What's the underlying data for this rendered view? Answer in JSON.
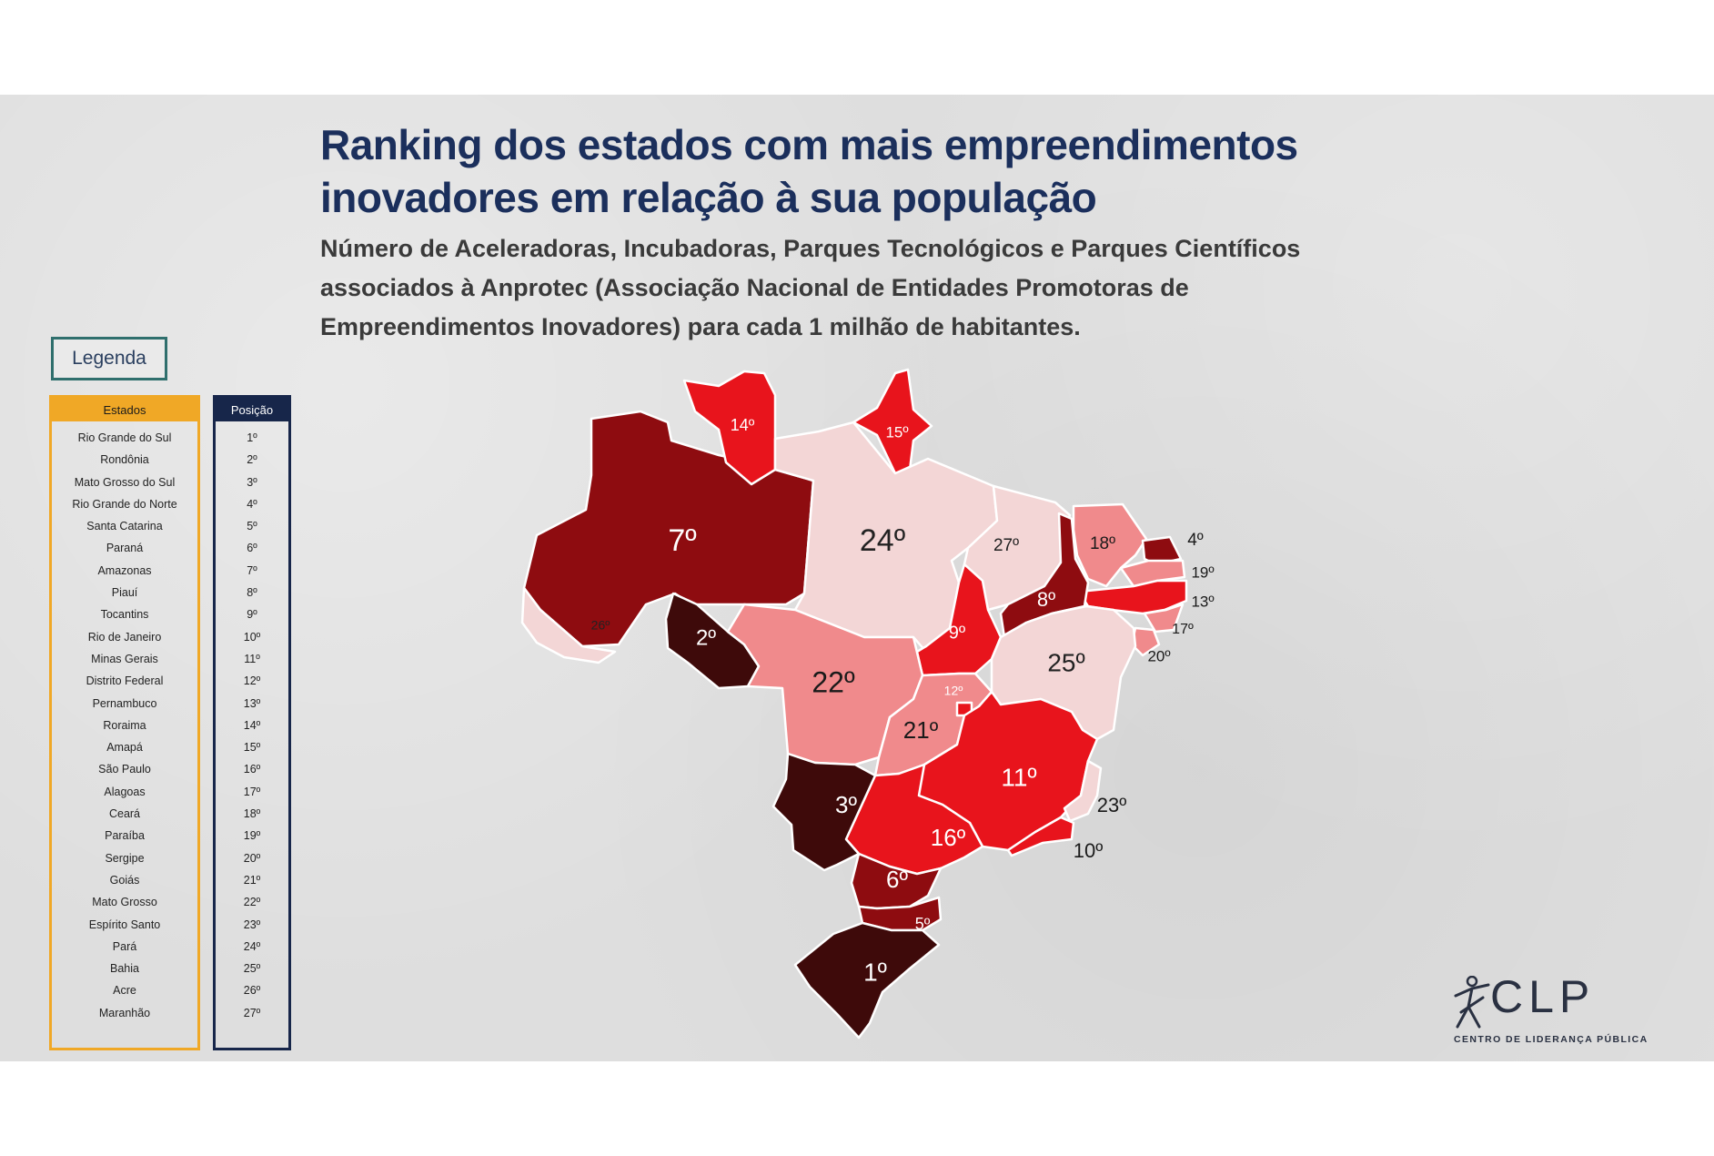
{
  "header": {
    "title_line1": "Ranking dos estados com mais empreendimentos",
    "title_line2": "inovadores em relação à sua população",
    "subtitle_line1": "Número de Aceleradoras, Incubadoras, Parques Tecnológicos e Parques Científicos",
    "subtitle_line2": "associados à Anprotec (Associação Nacional de Entidades Promotoras de",
    "subtitle_line3": "Empreendimentos Inovadores) para cada 1 milhão de habitantes."
  },
  "legend": {
    "title": "Legenda",
    "states_header": "Estados",
    "position_header": "Posição",
    "states": [
      "Rio Grande do Sul",
      "Rondônia",
      "Mato Grosso do Sul",
      "Rio Grande do Norte",
      "Santa Catarina",
      "Paraná",
      "Amazonas",
      "Piauí",
      "Tocantins",
      "Rio de Janeiro",
      "Minas Gerais",
      "Distrito Federal",
      "Pernambuco",
      "Roraima",
      "Amapá",
      "São Paulo",
      "Alagoas",
      "Ceará",
      "Paraíba",
      "Sergipe",
      "Goiás",
      "Mato Grosso",
      "Espírito Santo",
      "Pará",
      "Bahia",
      "Acre",
      "Maranhão"
    ],
    "positions": [
      "1º",
      "2º",
      "3º",
      "4º",
      "5º",
      "6º",
      "7º",
      "8º",
      "9º",
      "10º",
      "11º",
      "12º",
      "13º",
      "14º",
      "15º",
      "16º",
      "17º",
      "18º",
      "19º",
      "20º",
      "21º",
      "22º",
      "23º",
      "24º",
      "25º",
      "26º",
      "27º"
    ]
  },
  "map": {
    "regions": [
      {
        "state": "Amazonas",
        "label": "7º",
        "rank": 7
      },
      {
        "state": "Roraima",
        "label": "14º",
        "rank": 14
      },
      {
        "state": "Amapá",
        "label": "15º",
        "rank": 15
      },
      {
        "state": "Pará",
        "label": "24º",
        "rank": 24
      },
      {
        "state": "Maranhão",
        "label": "27º",
        "rank": 27
      },
      {
        "state": "Ceará",
        "label": "18º",
        "rank": 18
      },
      {
        "state": "Rio Grande do Norte",
        "label": "4º",
        "rank": 4
      },
      {
        "state": "Paraíba",
        "label": "19º",
        "rank": 19
      },
      {
        "state": "Pernambuco",
        "label": "13º",
        "rank": 13
      },
      {
        "state": "Alagoas",
        "label": "17º",
        "rank": 17
      },
      {
        "state": "Sergipe",
        "label": "20º",
        "rank": 20
      },
      {
        "state": "Piauí",
        "label": "8º",
        "rank": 8
      },
      {
        "state": "Tocantins",
        "label": "9º",
        "rank": 9
      },
      {
        "state": "Bahia",
        "label": "25º",
        "rank": 25
      },
      {
        "state": "Acre",
        "label": "26º",
        "rank": 26
      },
      {
        "state": "Rondônia",
        "label": "2º",
        "rank": 2
      },
      {
        "state": "Mato Grosso",
        "label": "22º",
        "rank": 22
      },
      {
        "state": "Goiás",
        "label": "21º",
        "rank": 21
      },
      {
        "state": "Distrito Federal",
        "label": "12º",
        "rank": 12
      },
      {
        "state": "Minas Gerais",
        "label": "11º",
        "rank": 11
      },
      {
        "state": "Espírito Santo",
        "label": "23º",
        "rank": 23
      },
      {
        "state": "Rio de Janeiro",
        "label": "10º",
        "rank": 10
      },
      {
        "state": "São Paulo",
        "label": "16º",
        "rank": 16
      },
      {
        "state": "Mato Grosso do Sul",
        "label": "3º",
        "rank": 3
      },
      {
        "state": "Paraná",
        "label": "6º",
        "rank": 6
      },
      {
        "state": "Santa Catarina",
        "label": "5º",
        "rank": 5
      },
      {
        "state": "Rio Grande do Sul",
        "label": "1º",
        "rank": 1
      }
    ],
    "colors": {
      "rank_1_3": "#3e0a0a",
      "rank_4_8": "#8e0c10",
      "rank_9_16": "#e8141c",
      "rank_17_22": "#f08a8c",
      "rank_23_27": "#f3d6d6"
    }
  },
  "logo": {
    "name": "CLP",
    "subtitle": "CENTRO DE LIDERANÇA PÚBLICA"
  }
}
